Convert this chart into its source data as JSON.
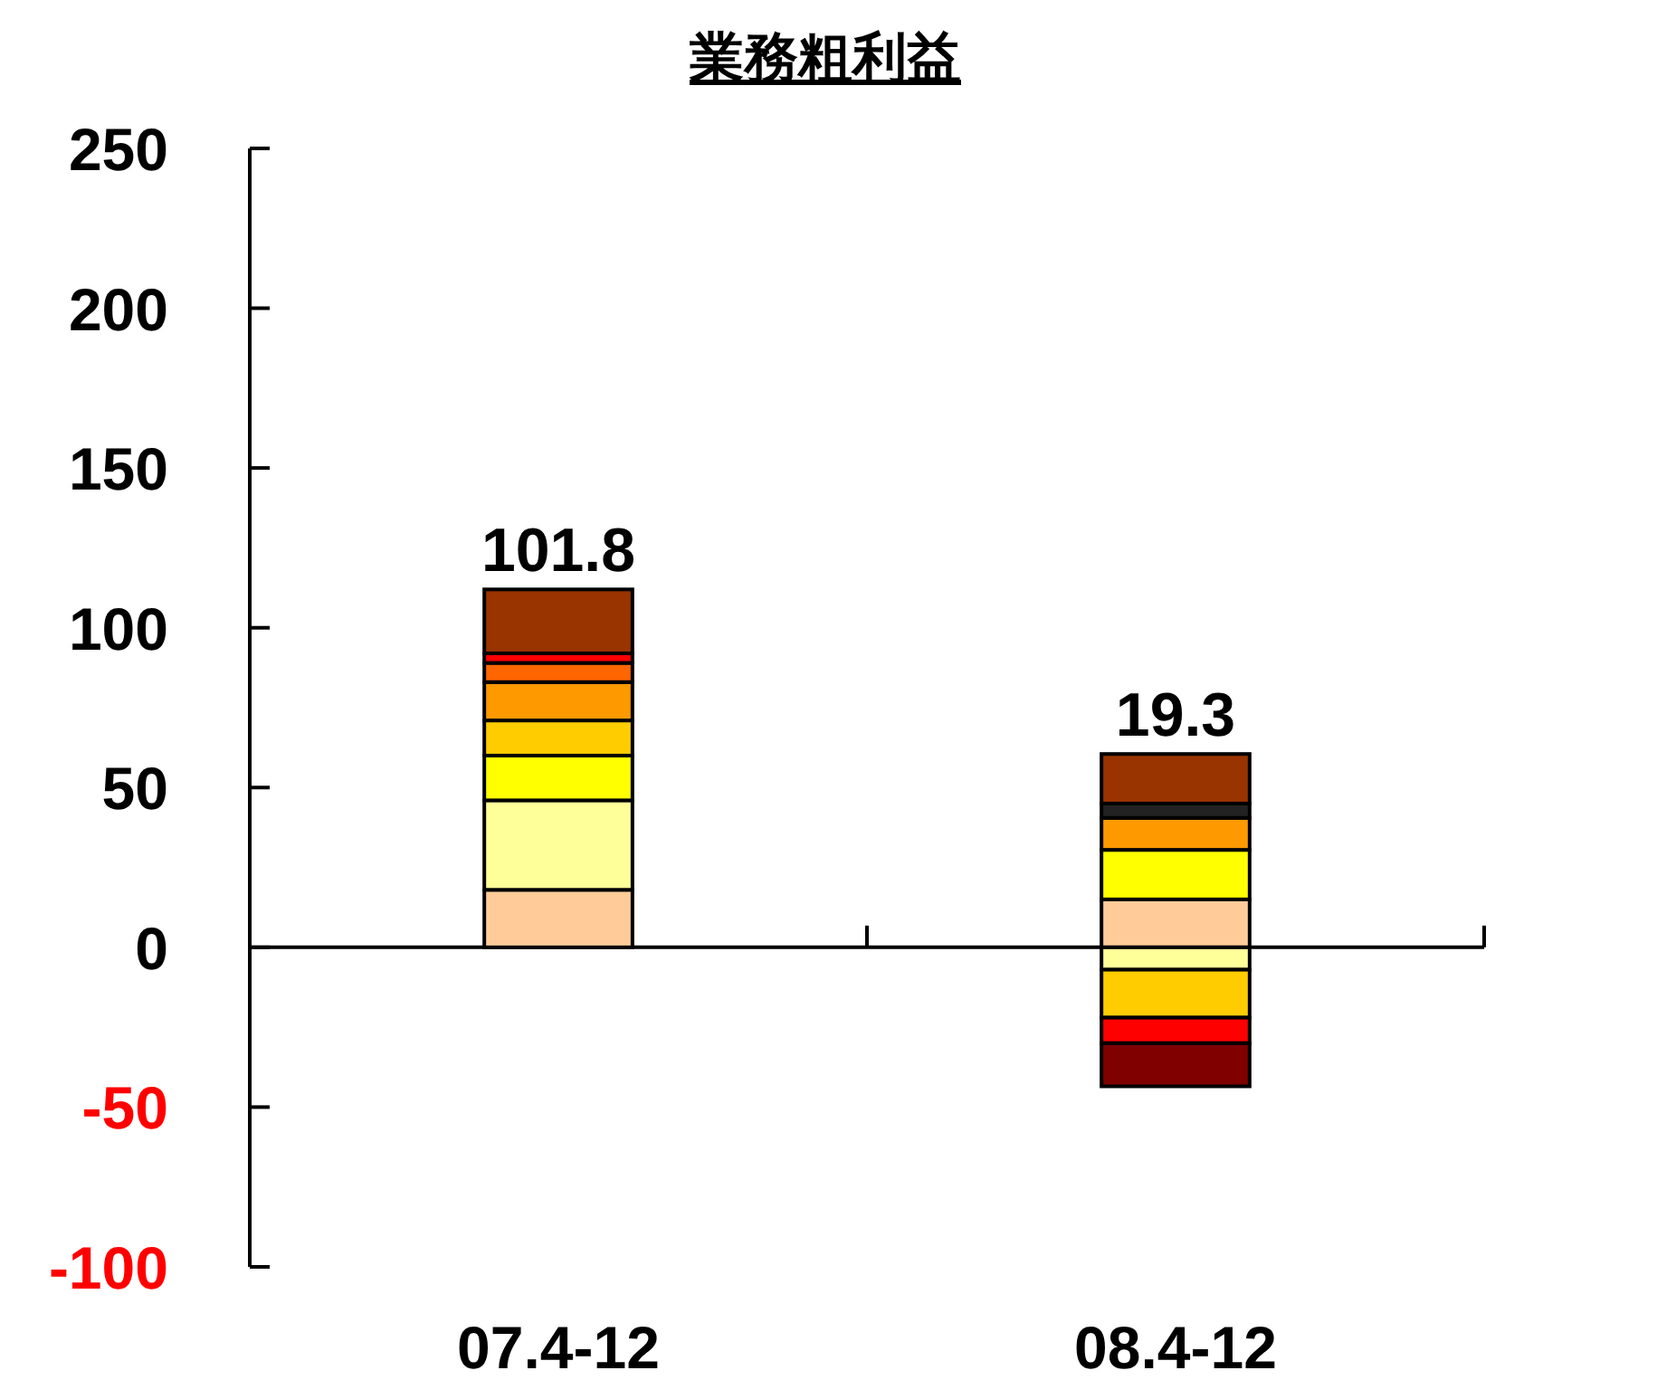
{
  "chart_data": {
    "type": "bar",
    "title": "業務粗利益",
    "categories": [
      "07.4-12",
      "08.4-12"
    ],
    "stacked": true,
    "series": [
      {
        "color": "#ffcc99",
        "values": [
          18,
          15
        ]
      },
      {
        "color": "#ffff99",
        "values": [
          28,
          -7
        ]
      },
      {
        "color": "#ffff00",
        "values": [
          14,
          15.5
        ]
      },
      {
        "color": "#ffcc00",
        "values": [
          11,
          -15
        ]
      },
      {
        "color": "#ff9900",
        "values": [
          12,
          10
        ]
      },
      {
        "color": "#ff6600",
        "values": [
          6,
          null
        ]
      },
      {
        "color": "#ff0000",
        "values": [
          3,
          -8
        ]
      },
      {
        "color": "#222222",
        "values": [
          null,
          4.5
        ]
      },
      {
        "color": "#993300",
        "values": [
          20,
          15.5
        ]
      },
      {
        "color": "#800000",
        "values": [
          null,
          -13.5
        ]
      }
    ],
    "annotations": [
      {
        "text": "101.8",
        "x": "07.4-12",
        "y": 112
      },
      {
        "text": "19.3",
        "x": "08.4-12",
        "y": 60.5
      }
    ],
    "ylim": [
      -100,
      250
    ],
    "yticks": [
      -100,
      -50,
      0,
      50,
      100,
      150,
      200,
      250
    ]
  }
}
